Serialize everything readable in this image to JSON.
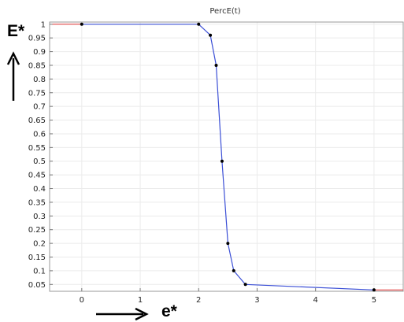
{
  "chart_data": {
    "type": "line",
    "title": "PercE(t)",
    "ylabel": "E*",
    "xlabel": "e*",
    "xlim": [
      -0.55,
      5.5
    ],
    "ylim": [
      0.025,
      1.008
    ],
    "xticks": [
      0,
      1,
      2,
      3,
      4,
      5
    ],
    "yticks": [
      0.05,
      0.1,
      0.15,
      0.2,
      0.25,
      0.3,
      0.35,
      0.4,
      0.45,
      0.5,
      0.55,
      0.6,
      0.65,
      0.7,
      0.75,
      0.8,
      0.85,
      0.9,
      0.95,
      1
    ],
    "grid": true,
    "series": [
      {
        "color": "#3b4fd6",
        "marker_color": "#000000",
        "points": [
          {
            "x": 0,
            "y": 1.0
          },
          {
            "x": 2.0,
            "y": 1.0
          },
          {
            "x": 2.2,
            "y": 0.96
          },
          {
            "x": 2.3,
            "y": 0.85
          },
          {
            "x": 2.4,
            "y": 0.5
          },
          {
            "x": 2.5,
            "y": 0.2
          },
          {
            "x": 2.6,
            "y": 0.1
          },
          {
            "x": 2.8,
            "y": 0.05
          },
          {
            "x": 5.0,
            "y": 0.03
          }
        ]
      }
    ],
    "extrapolation_color": "#e03030",
    "extrapolation_left": [
      {
        "x": -0.5,
        "y": 1.0
      },
      {
        "x": 0,
        "y": 1.0
      }
    ],
    "extrapolation_right": [
      {
        "x": 5.0,
        "y": 0.03
      },
      {
        "x": 5.5,
        "y": 0.03
      }
    ]
  }
}
